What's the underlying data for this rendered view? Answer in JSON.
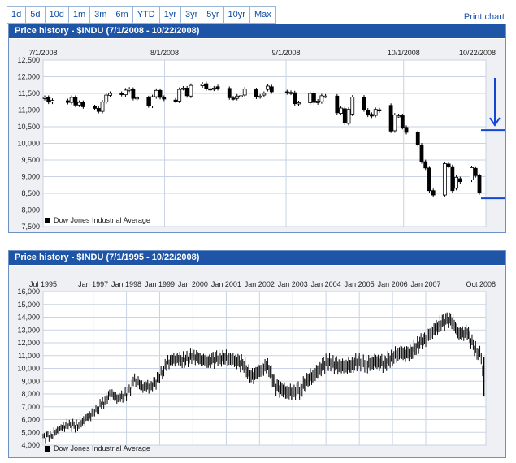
{
  "range_tabs": [
    "1d",
    "5d",
    "10d",
    "1m",
    "3m",
    "6m",
    "YTD",
    "1yr",
    "3yr",
    "5yr",
    "10yr",
    "Max"
  ],
  "print_label": "Print chart",
  "colors": {
    "title_bar": "#1f55a6",
    "arrow": "#1446d6",
    "body": "#eef0f4"
  },
  "top_panel": {
    "title": "Price history - $INDU (7/1/2008 - 10/22/2008)"
  },
  "bottom_panel": {
    "title": "Price history - $INDU (7/1/1995 - 10/22/2008)"
  },
  "annotation": {
    "arrow_icon": "down-arrow",
    "marker_levels": [
      10400,
      8350
    ]
  },
  "chart_data": [
    {
      "type": "candlestick",
      "title": "Price history - $INDU (7/1/2008 - 10/22/2008)",
      "xlabel": "",
      "ylabel": "",
      "legend": "Dow Jones Industrial Average",
      "legend_position": "bottom-left",
      "grid": true,
      "x_range": [
        "2008-07-01",
        "2008-10-22"
      ],
      "x_ticks": [
        "7/1/2008",
        "8/1/2008",
        "9/1/2008",
        "10/1/2008",
        "10/22/2008"
      ],
      "ylim": [
        7500,
        12500
      ],
      "y_ticks": [
        7500,
        8000,
        8500,
        9000,
        9500,
        10000,
        10500,
        11000,
        11500,
        12000,
        12500
      ],
      "series": [
        {
          "name": "Dow Jones Industrial Average",
          "x": [
            "2008-07-01",
            "2008-07-02",
            "2008-07-03",
            "2008-07-07",
            "2008-07-08",
            "2008-07-09",
            "2008-07-10",
            "2008-07-11",
            "2008-07-14",
            "2008-07-15",
            "2008-07-16",
            "2008-07-17",
            "2008-07-18",
            "2008-07-21",
            "2008-07-22",
            "2008-07-23",
            "2008-07-24",
            "2008-07-25",
            "2008-07-28",
            "2008-07-29",
            "2008-07-30",
            "2008-07-31",
            "2008-08-01",
            "2008-08-04",
            "2008-08-05",
            "2008-08-06",
            "2008-08-07",
            "2008-08-08",
            "2008-08-11",
            "2008-08-12",
            "2008-08-13",
            "2008-08-14",
            "2008-08-15",
            "2008-08-18",
            "2008-08-19",
            "2008-08-20",
            "2008-08-21",
            "2008-08-22",
            "2008-08-25",
            "2008-08-26",
            "2008-08-27",
            "2008-08-28",
            "2008-08-29",
            "2008-09-02",
            "2008-09-03",
            "2008-09-04",
            "2008-09-05",
            "2008-09-08",
            "2008-09-09",
            "2008-09-10",
            "2008-09-11",
            "2008-09-12",
            "2008-09-15",
            "2008-09-16",
            "2008-09-17",
            "2008-09-18",
            "2008-09-19",
            "2008-09-22",
            "2008-09-23",
            "2008-09-24",
            "2008-09-25",
            "2008-09-26",
            "2008-09-29",
            "2008-09-30",
            "2008-10-01",
            "2008-10-02",
            "2008-10-03",
            "2008-10-06",
            "2008-10-07",
            "2008-10-08",
            "2008-10-09",
            "2008-10-10",
            "2008-10-13",
            "2008-10-14",
            "2008-10-15",
            "2008-10-16",
            "2008-10-17",
            "2008-10-20",
            "2008-10-21",
            "2008-10-22"
          ],
          "open": [
            11350,
            11380,
            11240,
            11280,
            11230,
            11380,
            11150,
            11230,
            11100,
            11050,
            10960,
            11240,
            11440,
            11500,
            11460,
            11600,
            11620,
            11340,
            11370,
            11120,
            11400,
            11590,
            11380,
            11300,
            11270,
            11650,
            11660,
            11420,
            11730,
            11790,
            11640,
            11630,
            11700,
            11650,
            11360,
            11350,
            11420,
            11450,
            11610,
            11400,
            11450,
            11620,
            11700,
            11550,
            11510,
            11520,
            11190,
            11220,
            11500,
            11220,
            11250,
            11420,
            11420,
            10900,
            11040,
            10600,
            10880,
            11390,
            11000,
            10870,
            10840,
            11010,
            11140,
            10380,
            10830,
            10830,
            10480,
            10320,
            9950,
            9450,
            9260,
            8580,
            8450,
            9380,
            9300,
            8650,
            8940,
            8900,
            9250,
            9030
          ],
          "close": [
            11380,
            11240,
            11290,
            11230,
            11380,
            11150,
            11230,
            11100,
            11050,
            10960,
            11240,
            11450,
            11500,
            11470,
            11600,
            11630,
            11350,
            11370,
            11130,
            11400,
            11590,
            11380,
            11330,
            11280,
            11620,
            11660,
            11430,
            11740,
            11780,
            11640,
            11630,
            11660,
            11650,
            11370,
            11350,
            11420,
            11430,
            11630,
            11390,
            11420,
            11500,
            11720,
            11550,
            11520,
            11530,
            11190,
            11220,
            11500,
            11230,
            11270,
            11430,
            11420,
            10920,
            11060,
            10610,
            11020,
            11390,
            11010,
            10850,
            10820,
            11020,
            10980,
            10370,
            10850,
            10830,
            10480,
            10330,
            9960,
            9450,
            9260,
            8580,
            8450,
            9390,
            9310,
            8580,
            8980,
            8850,
            9270,
            9030,
            8520
          ]
        }
      ]
    },
    {
      "type": "candlestick",
      "title": "Price history - $INDU (7/1/1995 - 10/22/2008)",
      "xlabel": "",
      "ylabel": "",
      "legend": "Dow Jones Industrial Average",
      "legend_position": "bottom-left",
      "grid": true,
      "x_range": [
        "1995-07-01",
        "2008-10-22"
      ],
      "x_ticks": [
        "Jul 1995",
        "Jan 1997",
        "Jan 1998",
        "Jan 1999",
        "Jan 2000",
        "Jan 2001",
        "Jan 2002",
        "Jan 2003",
        "Jan 2004",
        "Jan 2005",
        "Jan 2006",
        "Jan 2007",
        "Oct 2008"
      ],
      "ylim": [
        4000,
        16000
      ],
      "y_ticks": [
        4000,
        5000,
        6000,
        7000,
        8000,
        9000,
        10000,
        11000,
        12000,
        13000,
        14000,
        15000,
        16000
      ],
      "series": [
        {
          "name": "Dow Jones Industrial Average",
          "x": [
            "1995-07",
            "1995-10",
            "1996-01",
            "1996-04",
            "1996-07",
            "1996-10",
            "1997-01",
            "1997-04",
            "1997-07",
            "1997-10",
            "1998-01",
            "1998-04",
            "1998-07",
            "1998-10",
            "1999-01",
            "1999-04",
            "1999-07",
            "1999-10",
            "2000-01",
            "2000-04",
            "2000-07",
            "2000-10",
            "2001-01",
            "2001-04",
            "2001-07",
            "2001-10",
            "2002-01",
            "2002-04",
            "2002-07",
            "2002-10",
            "2003-01",
            "2003-04",
            "2003-07",
            "2003-10",
            "2004-01",
            "2004-04",
            "2004-07",
            "2004-10",
            "2005-01",
            "2005-04",
            "2005-07",
            "2005-10",
            "2006-01",
            "2006-04",
            "2006-07",
            "2006-10",
            "2007-01",
            "2007-04",
            "2007-07",
            "2007-10",
            "2008-01",
            "2008-04",
            "2008-07",
            "2008-09",
            "2008-10"
          ],
          "value": [
            4600,
            4800,
            5300,
            5600,
            5500,
            6000,
            6500,
            7100,
            8000,
            7700,
            7900,
            9000,
            8600,
            8600,
            9300,
            10500,
            10800,
            10600,
            11000,
            10700,
            10600,
            10800,
            10800,
            10600,
            10400,
            9300,
            9800,
            10200,
            8600,
            8200,
            8100,
            8400,
            9200,
            9700,
            10500,
            10300,
            10100,
            10200,
            10600,
            10300,
            10500,
            10400,
            10900,
            11200,
            11100,
            11800,
            12400,
            13000,
            13600,
            13900,
            12700,
            12800,
            11400,
            11000,
            8500
          ]
        }
      ]
    }
  ]
}
